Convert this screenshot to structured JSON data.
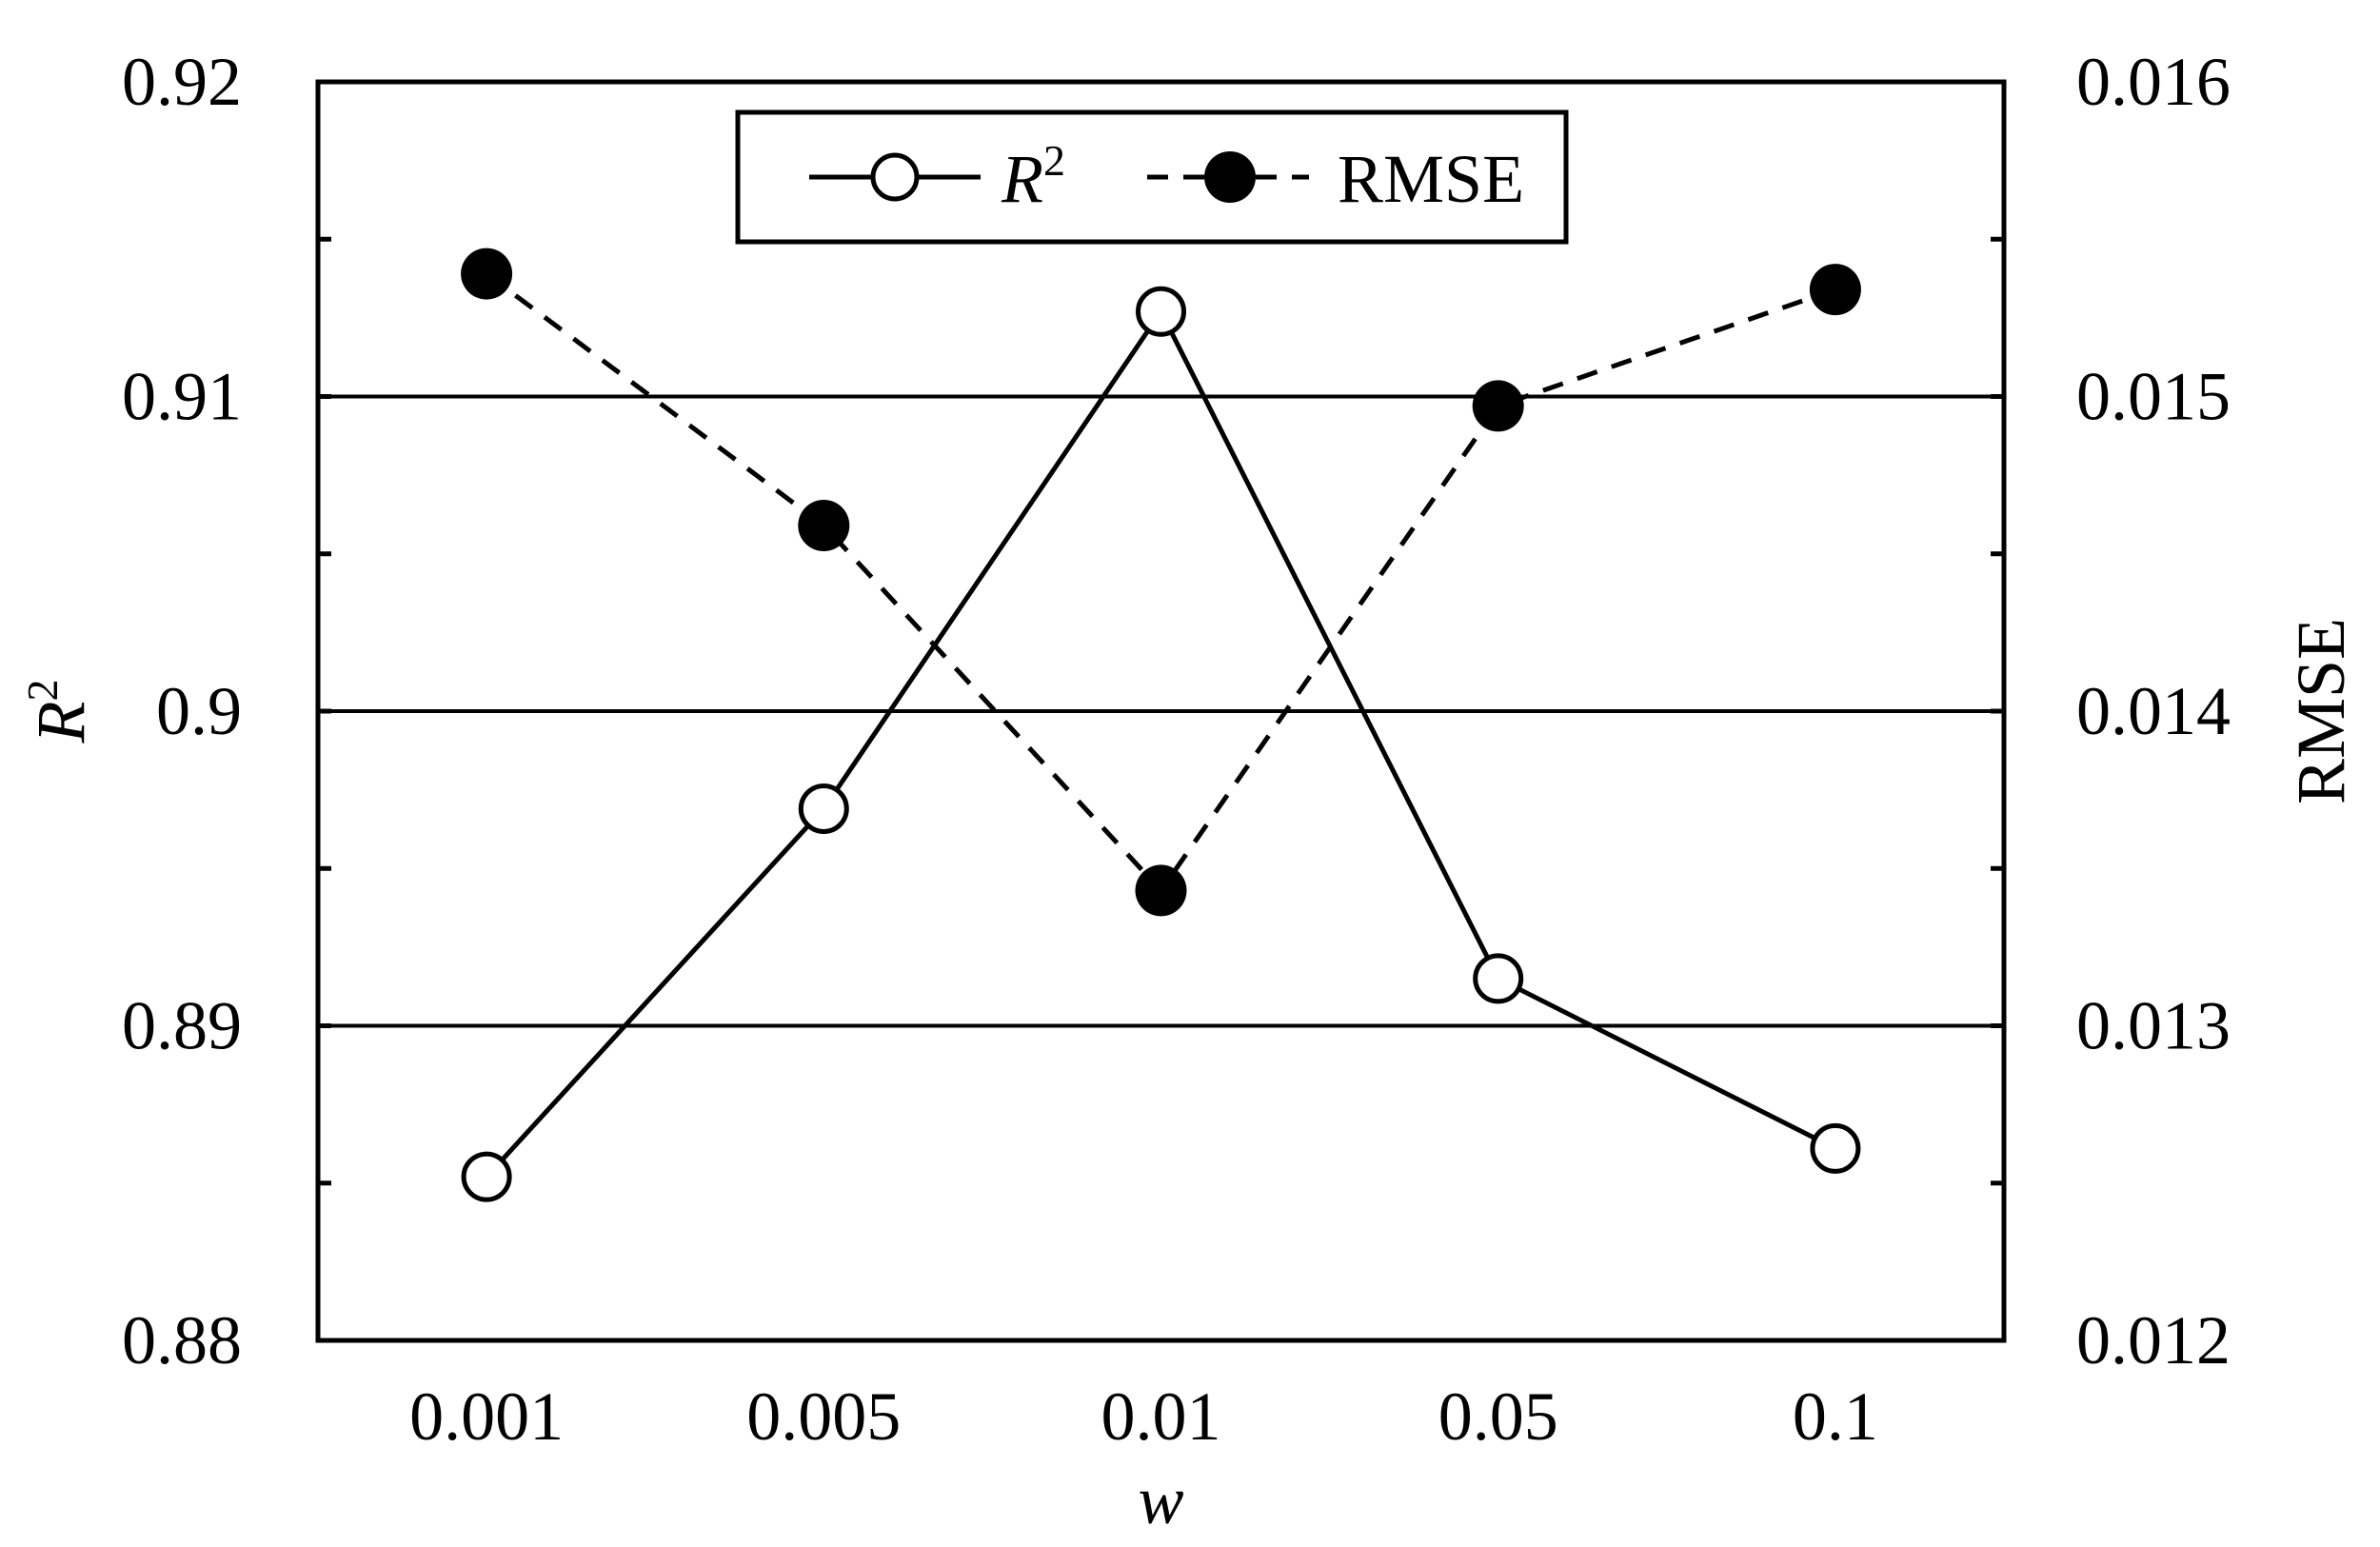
{
  "chart_data": {
    "type": "line",
    "xlabel": "w",
    "categories": [
      "0.001",
      "0.005",
      "0.01",
      "0.05",
      "0.1"
    ],
    "y_left": {
      "label_base": "R",
      "label_sup": "2",
      "ylim": [
        0.88,
        0.92
      ],
      "ticks": [
        "0.88",
        "0.89",
        "0.9",
        "0.91",
        "0.92"
      ],
      "tick_values": [
        0.88,
        0.89,
        0.9,
        0.91,
        0.92
      ]
    },
    "y_right": {
      "label": "RMSE",
      "ylim": [
        0.012,
        0.016
      ],
      "ticks": [
        "0.012",
        "0.013",
        "0.014",
        "0.015",
        "0.016"
      ],
      "tick_values": [
        0.012,
        0.013,
        0.014,
        0.015,
        0.016
      ]
    },
    "gridlines": [
      0.89,
      0.9,
      0.91
    ],
    "minor_ticks_left": [
      0.885,
      0.895,
      0.905,
      0.915
    ],
    "series": [
      {
        "name_base": "R",
        "name_sup": "2",
        "axis": "left",
        "style": "solid",
        "marker": "open-circle",
        "values": [
          0.8852,
          0.8969,
          0.9127,
          0.8915,
          0.8861
        ]
      },
      {
        "name": "RMSE",
        "axis": "right",
        "style": "dashed",
        "marker": "filled-circle",
        "values": [
          0.01539,
          0.01459,
          0.01343,
          0.01497,
          0.01534
        ]
      }
    ],
    "legend_position": "top-center",
    "grid": true
  }
}
